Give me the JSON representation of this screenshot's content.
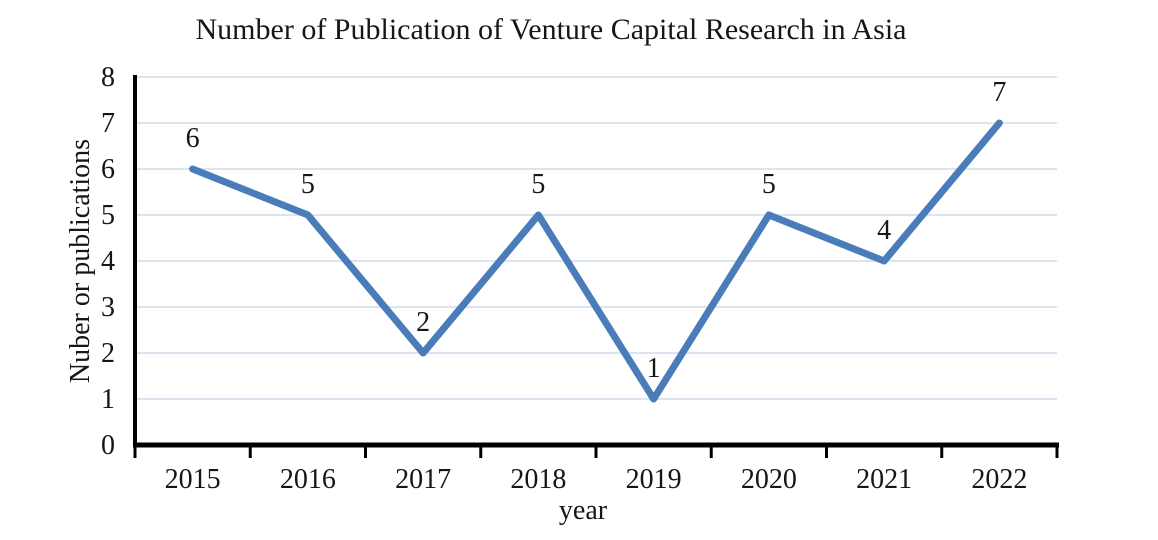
{
  "chart_data": {
    "type": "line",
    "title": "Number of Publication of Venture Capital Research in Asia",
    "xlabel": "year",
    "ylabel": "Nuber or publications",
    "categories": [
      "2015",
      "2016",
      "2017",
      "2018",
      "2019",
      "2020",
      "2021",
      "2022"
    ],
    "series": [
      {
        "name": "publications",
        "values": [
          6,
          5,
          2,
          5,
          1,
          5,
          4,
          7
        ]
      }
    ],
    "data_labels": [
      "6",
      "5",
      "2",
      "5",
      "1",
      "5",
      "4",
      "7"
    ],
    "y_tick_labels": [
      "0",
      "1",
      "2",
      "3",
      "4",
      "5",
      "6",
      "7",
      "8"
    ],
    "ylim": [
      0,
      8
    ],
    "ytick_interval": 1,
    "grid": "horizontal",
    "legend": "none",
    "markers": "none",
    "colors": {
      "line": "#4b7cba",
      "gridline": "#dce4f1",
      "axis": "#000000",
      "text": "#161616",
      "background": "#ffffff"
    }
  }
}
